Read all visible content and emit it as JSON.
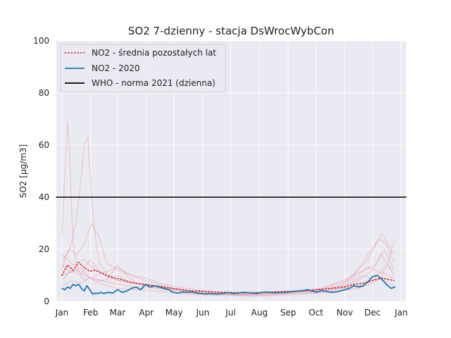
{
  "chart_data": {
    "type": "line",
    "title": "SO2 7-dzienny - stacja DsWrocWybCon",
    "xlabel": "",
    "ylabel": "SO2 [µg/m3]",
    "xlim": [
      -6,
      371
    ],
    "ylim": [
      0,
      100
    ],
    "x_ticks": [
      {
        "label": "Jan",
        "day": 0
      },
      {
        "label": "Feb",
        "day": 31
      },
      {
        "label": "Mar",
        "day": 60
      },
      {
        "label": "Apr",
        "day": 91
      },
      {
        "label": "May",
        "day": 121
      },
      {
        "label": "Jun",
        "day": 152
      },
      {
        "label": "Jul",
        "day": 182
      },
      {
        "label": "Aug",
        "day": 213
      },
      {
        "label": "Sep",
        "day": 244
      },
      {
        "label": "Oct",
        "day": 274
      },
      {
        "label": "Nov",
        "day": 305
      },
      {
        "label": "Dec",
        "day": 335
      },
      {
        "label": "Jan",
        "day": 366
      }
    ],
    "y_ticks": [
      0,
      20,
      40,
      60,
      80,
      100
    ],
    "grid": true,
    "legend_position": "top-left",
    "colors": {
      "background": "#eaeaf2",
      "grid": "#ffffff",
      "mean_other_years": "#d62728",
      "year_2020": "#1f77b4",
      "who_norm": "#000000",
      "other_years": "#e8a7ad"
    },
    "series": [
      {
        "name": "NO2 - średnia pozostałych lat",
        "style": "dotted",
        "x": [
          0,
          6,
          12,
          18,
          24,
          30,
          36,
          42,
          48,
          56,
          64,
          72,
          80,
          90,
          100,
          110,
          120,
          130,
          140,
          150,
          165,
          180,
          200,
          220,
          240,
          260,
          275,
          290,
          305,
          315,
          325,
          335,
          345,
          358
        ],
        "y": [
          10,
          14,
          12,
          15,
          13,
          11.5,
          12,
          11,
          10,
          9,
          8.5,
          7.5,
          7,
          6.5,
          6,
          5.5,
          5,
          4.5,
          4,
          4,
          3.6,
          3.4,
          3.3,
          3.5,
          3.8,
          4,
          4.5,
          5,
          5.5,
          6.5,
          7,
          8,
          9,
          8
        ]
      },
      {
        "name": "NO2 - 2020",
        "style": "solid",
        "x": [
          0,
          3,
          6,
          9,
          12,
          15,
          18,
          21,
          24,
          27,
          30,
          33,
          36,
          39,
          42,
          45,
          50,
          55,
          60,
          65,
          70,
          75,
          80,
          85,
          90,
          95,
          100,
          105,
          110,
          115,
          120,
          125,
          130,
          135,
          140,
          145,
          150,
          155,
          160,
          165,
          170,
          175,
          180,
          185,
          190,
          195,
          200,
          205,
          210,
          215,
          220,
          225,
          230,
          235,
          240,
          245,
          250,
          255,
          260,
          265,
          270,
          275,
          280,
          285,
          290,
          295,
          300,
          305,
          310,
          315,
          320,
          325,
          330,
          335,
          340,
          345,
          350,
          355,
          359
        ],
        "y": [
          5,
          4.5,
          5.5,
          5,
          6.5,
          6,
          6.5,
          5,
          4,
          6,
          4.5,
          2.8,
          3.2,
          3,
          3.5,
          3,
          3.5,
          3.2,
          4.5,
          3.5,
          4,
          5,
          5.5,
          4.5,
          6.5,
          5.5,
          6,
          5.5,
          5,
          4.5,
          3.5,
          3.2,
          3.6,
          3.5,
          3.6,
          3.2,
          3,
          2.8,
          3,
          2.8,
          2.9,
          3.2,
          3.4,
          3,
          3.2,
          3.5,
          3.4,
          3.2,
          3,
          3.4,
          3.6,
          3.5,
          3.3,
          3.5,
          3.4,
          3.6,
          3.8,
          4,
          4.2,
          4.5,
          4,
          3.5,
          4.2,
          3.8,
          3.5,
          3.6,
          4,
          4.5,
          5,
          6,
          5.5,
          6,
          7.5,
          9.5,
          10,
          8.5,
          6.5,
          5,
          5.5
        ]
      },
      {
        "name": "WHO - norma 2021 (dzienna)",
        "style": "solid",
        "x": [
          -6,
          371
        ],
        "y": [
          40,
          40
        ]
      }
    ],
    "other_years": [
      {
        "x": [
          0,
          2,
          4,
          6,
          8,
          10,
          12,
          16,
          20,
          25,
          30,
          40,
          50,
          60,
          80,
          100,
          130,
          160,
          190,
          220,
          250,
          280,
          300,
          320,
          335,
          345,
          352,
          358
        ],
        "y": [
          25,
          40,
          55,
          69,
          60,
          40,
          22,
          14,
          10,
          8,
          9,
          7,
          6,
          5,
          4.5,
          4,
          3,
          2.5,
          2.5,
          3,
          3.5,
          4,
          5,
          6,
          8,
          12,
          15,
          23
        ]
      },
      {
        "x": [
          0,
          5,
          10,
          15,
          20,
          24,
          28,
          32,
          36,
          40,
          50,
          60,
          80,
          100,
          130,
          160,
          190,
          220,
          250,
          280,
          300,
          320,
          335,
          345,
          358
        ],
        "y": [
          12,
          18,
          22,
          30,
          45,
          60,
          63,
          40,
          25,
          15,
          10,
          8,
          7,
          5,
          4,
          3,
          2.5,
          3,
          3.5,
          4,
          5,
          8,
          12,
          18,
          10
        ]
      },
      {
        "x": [
          0,
          8,
          16,
          24,
          32,
          40,
          48,
          60,
          75,
          90,
          110,
          130,
          160,
          190,
          220,
          250,
          280,
          300,
          315,
          330,
          342,
          350,
          358
        ],
        "y": [
          15,
          20,
          18,
          22,
          30,
          25,
          15,
          12,
          10,
          8,
          6,
          4,
          3,
          2.8,
          3,
          3.5,
          4,
          6,
          10,
          18,
          24,
          22,
          15
        ]
      },
      {
        "x": [
          0,
          10,
          20,
          30,
          40,
          50,
          60,
          70,
          80,
          100,
          120,
          150,
          180,
          210,
          240,
          270,
          300,
          320,
          338,
          348,
          358
        ],
        "y": [
          8,
          12,
          10,
          16,
          12,
          9,
          14,
          10,
          7,
          6,
          5,
          3.5,
          3,
          2.5,
          3,
          4,
          7,
          11,
          14,
          20,
          12
        ]
      },
      {
        "x": [
          0,
          10,
          20,
          30,
          40,
          55,
          70,
          85,
          100,
          120,
          150,
          180,
          210,
          240,
          270,
          300,
          320,
          335,
          345,
          358
        ],
        "y": [
          6,
          8,
          7,
          9,
          8,
          7,
          6,
          5,
          5.5,
          4.5,
          3.5,
          2.5,
          2,
          2.5,
          3,
          4,
          5,
          7,
          9,
          6
        ]
      },
      {
        "x": [
          0,
          12,
          24,
          36,
          48,
          60,
          80,
          100,
          130,
          160,
          190,
          220,
          250,
          280,
          310,
          330,
          345,
          358
        ],
        "y": [
          18,
          14,
          16,
          12,
          10,
          8,
          7,
          6,
          4,
          3.5,
          3,
          3.2,
          3.8,
          5,
          9,
          16,
          26,
          18
        ]
      },
      {
        "x": [
          0,
          15,
          30,
          45,
          60,
          75,
          90,
          105,
          120,
          150,
          180,
          210,
          240,
          270,
          300,
          315,
          330,
          345,
          358
        ],
        "y": [
          10,
          12,
          9,
          11,
          13,
          10,
          9,
          7,
          6,
          4,
          3,
          2.8,
          3.2,
          4,
          6,
          9,
          13,
          11,
          9
        ]
      },
      {
        "x": [
          0,
          10,
          20,
          30,
          45,
          60,
          75,
          90,
          110,
          140,
          170,
          200,
          230,
          260,
          290,
          310,
          325,
          340,
          352,
          358
        ],
        "y": [
          14,
          11,
          13,
          9,
          8,
          10,
          7,
          6,
          5,
          3.5,
          2.5,
          2.2,
          2.6,
          3,
          4,
          7,
          10,
          8,
          14,
          10
        ]
      }
    ]
  }
}
